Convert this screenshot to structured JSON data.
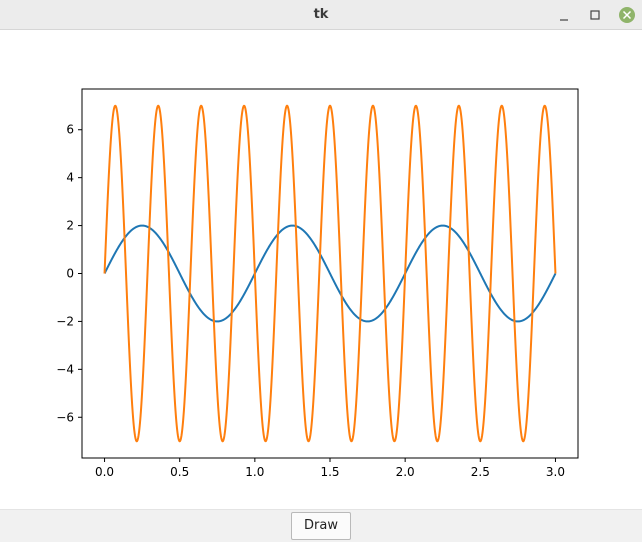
{
  "window": {
    "title": "tk"
  },
  "controls": {
    "minimize_glyph": "–",
    "maximize_glyph": "□",
    "close_glyph": "×"
  },
  "buttons": {
    "draw_label": "Draw"
  },
  "colors": {
    "series1": "#1f77b4",
    "series2": "#ff7f0e",
    "close_button": "#8fb46a"
  },
  "chart_data": {
    "type": "line",
    "title": "",
    "xlabel": "",
    "ylabel": "",
    "xlim": [
      -0.15,
      3.15
    ],
    "ylim": [
      -7.7,
      7.7
    ],
    "xticks": [
      0.0,
      0.5,
      1.0,
      1.5,
      2.0,
      2.5,
      3.0
    ],
    "xtick_labels": [
      "0.0",
      "0.5",
      "1.0",
      "1.5",
      "2.0",
      "2.5",
      "3.0"
    ],
    "yticks": [
      -6,
      -4,
      -2,
      0,
      2,
      4,
      6
    ],
    "ytick_labels": [
      "−6",
      "−4",
      "−2",
      "0",
      "2",
      "4",
      "6"
    ],
    "grid": false,
    "series": [
      {
        "function": "2*sin(2*pi*x)",
        "x_range": [
          0,
          3
        ],
        "amplitude": 2,
        "frequency": 1,
        "color": "#1f77b4"
      },
      {
        "function": "7*sin(2*pi*3.5*x)",
        "x_range": [
          0,
          3
        ],
        "amplitude": 7,
        "frequency": 3.5,
        "color": "#ff7f0e"
      }
    ]
  }
}
